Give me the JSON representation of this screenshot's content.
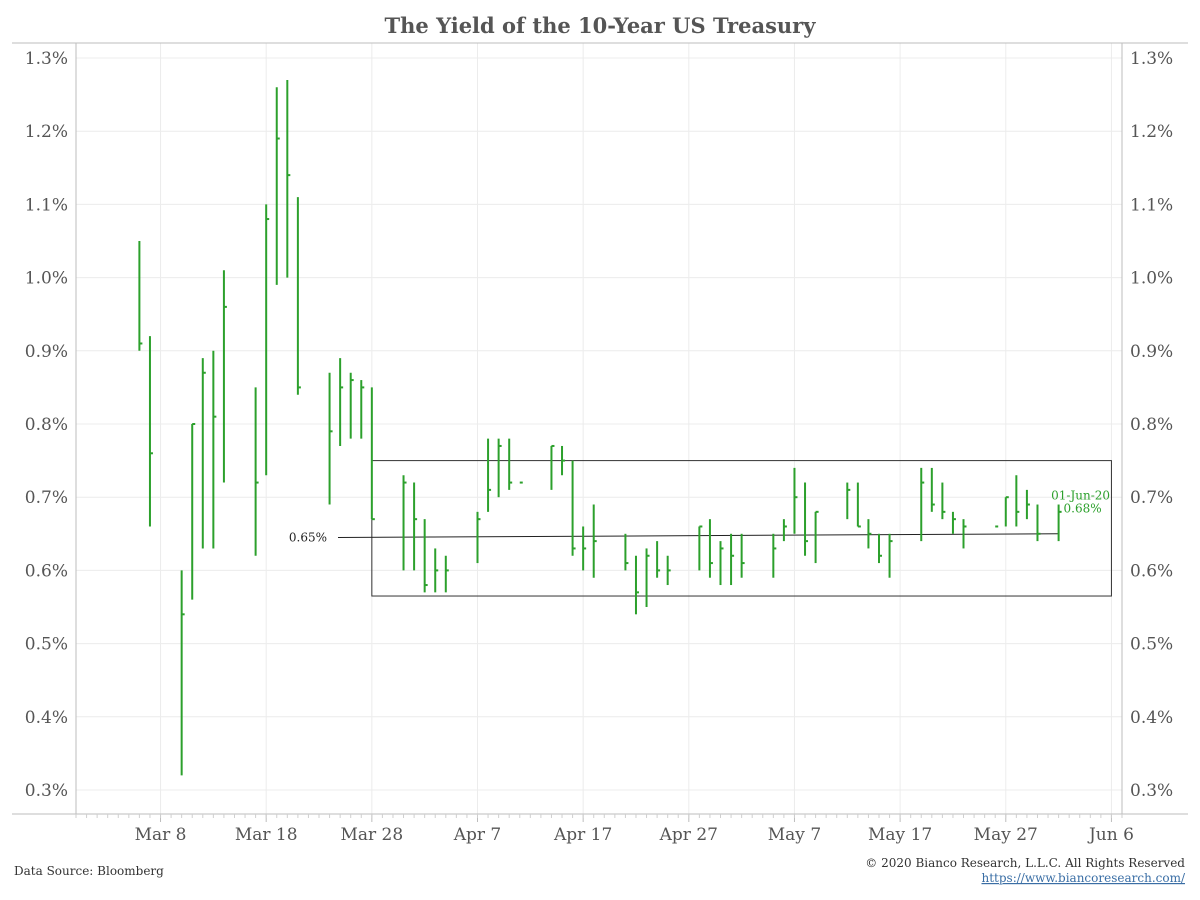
{
  "chart_data": {
    "type": "ohlc",
    "title": "The Yield of the 10-Year US Treasury",
    "ylim": [
      0.3,
      1.3
    ],
    "y_ticks": [
      {
        "value": 1.3,
        "label": "1.3%"
      },
      {
        "value": 1.2,
        "label": "1.2%"
      },
      {
        "value": 1.1,
        "label": "1.1%"
      },
      {
        "value": 1.0,
        "label": "1.0%"
      },
      {
        "value": 0.9,
        "label": "0.9%"
      },
      {
        "value": 0.8,
        "label": "0.8%"
      },
      {
        "value": 0.7,
        "label": "0.7%"
      },
      {
        "value": 0.6,
        "label": "0.6%"
      },
      {
        "value": 0.5,
        "label": "0.5%"
      },
      {
        "value": 0.4,
        "label": "0.4%"
      },
      {
        "value": 0.3,
        "label": "0.3%"
      }
    ],
    "x_range": [
      "2020-02-29",
      "2020-06-07"
    ],
    "x_ticks": [
      {
        "date": "2020-03-08",
        "label": "Mar 8"
      },
      {
        "date": "2020-03-18",
        "label": "Mar 18"
      },
      {
        "date": "2020-03-28",
        "label": "Mar 28"
      },
      {
        "date": "2020-04-07",
        "label": "Apr 7"
      },
      {
        "date": "2020-04-17",
        "label": "Apr 17"
      },
      {
        "date": "2020-04-27",
        "label": "Apr 27"
      },
      {
        "date": "2020-05-07",
        "label": "May 7"
      },
      {
        "date": "2020-05-17",
        "label": "May 17"
      },
      {
        "date": "2020-05-27",
        "label": "May 27"
      },
      {
        "date": "2020-06-06",
        "label": "Jun 6"
      }
    ],
    "grid": true,
    "bar_color": "#2ca02c",
    "series": [
      {
        "date": "2020-03-06",
        "high": 1.05,
        "low": 0.9,
        "close": 0.91
      },
      {
        "date": "2020-03-07",
        "high": 0.92,
        "low": 0.66,
        "close": 0.76
      },
      {
        "date": "2020-03-10",
        "high": 0.6,
        "low": 0.32,
        "close": 0.54
      },
      {
        "date": "2020-03-11",
        "high": 0.8,
        "low": 0.56,
        "close": 0.8
      },
      {
        "date": "2020-03-12",
        "high": 0.89,
        "low": 0.63,
        "close": 0.87
      },
      {
        "date": "2020-03-13",
        "high": 0.9,
        "low": 0.63,
        "close": 0.81
      },
      {
        "date": "2020-03-14",
        "high": 1.01,
        "low": 0.72,
        "close": 0.96
      },
      {
        "date": "2020-03-17",
        "high": 0.85,
        "low": 0.62,
        "close": 0.72
      },
      {
        "date": "2020-03-18",
        "high": 1.1,
        "low": 0.73,
        "close": 1.08
      },
      {
        "date": "2020-03-19",
        "high": 1.26,
        "low": 0.99,
        "close": 1.19
      },
      {
        "date": "2020-03-20",
        "high": 1.27,
        "low": 1.0,
        "close": 1.14
      },
      {
        "date": "2020-03-21",
        "high": 1.11,
        "low": 0.84,
        "close": 0.85
      },
      {
        "date": "2020-03-24",
        "high": 0.87,
        "low": 0.69,
        "close": 0.79
      },
      {
        "date": "2020-03-25",
        "high": 0.89,
        "low": 0.77,
        "close": 0.85
      },
      {
        "date": "2020-03-26",
        "high": 0.87,
        "low": 0.78,
        "close": 0.86
      },
      {
        "date": "2020-03-27",
        "high": 0.86,
        "low": 0.78,
        "close": 0.85
      },
      {
        "date": "2020-03-28",
        "high": 0.85,
        "low": 0.67,
        "close": 0.67
      },
      {
        "date": "2020-03-31",
        "high": 0.73,
        "low": 0.6,
        "close": 0.72
      },
      {
        "date": "2020-04-01",
        "high": 0.72,
        "low": 0.6,
        "close": 0.67
      },
      {
        "date": "2020-04-02",
        "high": 0.67,
        "low": 0.57,
        "close": 0.58
      },
      {
        "date": "2020-04-03",
        "high": 0.63,
        "low": 0.57,
        "close": 0.6
      },
      {
        "date": "2020-04-04",
        "high": 0.62,
        "low": 0.57,
        "close": 0.6
      },
      {
        "date": "2020-04-07",
        "high": 0.68,
        "low": 0.61,
        "close": 0.67
      },
      {
        "date": "2020-04-08",
        "high": 0.78,
        "low": 0.68,
        "close": 0.71
      },
      {
        "date": "2020-04-09",
        "high": 0.78,
        "low": 0.7,
        "close": 0.77
      },
      {
        "date": "2020-04-10",
        "high": 0.78,
        "low": 0.71,
        "close": 0.72
      },
      {
        "date": "2020-04-11",
        "high": 0.72,
        "low": 0.72,
        "close": 0.72
      },
      {
        "date": "2020-04-14",
        "high": 0.77,
        "low": 0.71,
        "close": 0.77
      },
      {
        "date": "2020-04-15",
        "high": 0.77,
        "low": 0.73,
        "close": 0.75
      },
      {
        "date": "2020-04-16",
        "high": 0.75,
        "low": 0.62,
        "close": 0.63
      },
      {
        "date": "2020-04-17",
        "high": 0.66,
        "low": 0.6,
        "close": 0.63
      },
      {
        "date": "2020-04-18",
        "high": 0.69,
        "low": 0.59,
        "close": 0.64
      },
      {
        "date": "2020-04-21",
        "high": 0.65,
        "low": 0.6,
        "close": 0.61
      },
      {
        "date": "2020-04-22",
        "high": 0.62,
        "low": 0.54,
        "close": 0.57
      },
      {
        "date": "2020-04-23",
        "high": 0.63,
        "low": 0.55,
        "close": 0.62
      },
      {
        "date": "2020-04-24",
        "high": 0.64,
        "low": 0.59,
        "close": 0.6
      },
      {
        "date": "2020-04-25",
        "high": 0.62,
        "low": 0.58,
        "close": 0.6
      },
      {
        "date": "2020-04-28",
        "high": 0.66,
        "low": 0.6,
        "close": 0.66
      },
      {
        "date": "2020-04-29",
        "high": 0.67,
        "low": 0.59,
        "close": 0.61
      },
      {
        "date": "2020-04-30",
        "high": 0.64,
        "low": 0.58,
        "close": 0.63
      },
      {
        "date": "2020-05-01",
        "high": 0.65,
        "low": 0.58,
        "close": 0.62
      },
      {
        "date": "2020-05-02",
        "high": 0.65,
        "low": 0.59,
        "close": 0.61
      },
      {
        "date": "2020-05-05",
        "high": 0.65,
        "low": 0.59,
        "close": 0.63
      },
      {
        "date": "2020-05-06",
        "high": 0.67,
        "low": 0.64,
        "close": 0.66
      },
      {
        "date": "2020-05-07",
        "high": 0.74,
        "low": 0.65,
        "close": 0.7
      },
      {
        "date": "2020-05-08",
        "high": 0.72,
        "low": 0.62,
        "close": 0.64
      },
      {
        "date": "2020-05-09",
        "high": 0.68,
        "low": 0.61,
        "close": 0.68
      },
      {
        "date": "2020-05-12",
        "high": 0.72,
        "low": 0.67,
        "close": 0.71
      },
      {
        "date": "2020-05-13",
        "high": 0.72,
        "low": 0.66,
        "close": 0.66
      },
      {
        "date": "2020-05-14",
        "high": 0.67,
        "low": 0.63,
        "close": 0.65
      },
      {
        "date": "2020-05-15",
        "high": 0.65,
        "low": 0.61,
        "close": 0.62
      },
      {
        "date": "2020-05-16",
        "high": 0.65,
        "low": 0.59,
        "close": 0.64
      },
      {
        "date": "2020-05-19",
        "high": 0.74,
        "low": 0.64,
        "close": 0.72
      },
      {
        "date": "2020-05-20",
        "high": 0.74,
        "low": 0.68,
        "close": 0.69
      },
      {
        "date": "2020-05-21",
        "high": 0.72,
        "low": 0.67,
        "close": 0.68
      },
      {
        "date": "2020-05-22",
        "high": 0.68,
        "low": 0.65,
        "close": 0.67
      },
      {
        "date": "2020-05-23",
        "high": 0.67,
        "low": 0.63,
        "close": 0.66
      },
      {
        "date": "2020-05-26",
        "high": 0.66,
        "low": 0.66,
        "close": 0.66
      },
      {
        "date": "2020-05-27",
        "high": 0.7,
        "low": 0.66,
        "close": 0.7
      },
      {
        "date": "2020-05-28",
        "high": 0.73,
        "low": 0.66,
        "close": 0.68
      },
      {
        "date": "2020-05-29",
        "high": 0.71,
        "low": 0.67,
        "close": 0.69
      },
      {
        "date": "2020-05-30",
        "high": 0.69,
        "low": 0.64,
        "close": 0.65
      },
      {
        "date": "2020-06-01",
        "high": 0.69,
        "low": 0.64,
        "close": 0.68
      }
    ],
    "reference_line": {
      "label": "0.65%",
      "start": {
        "date": "2020-03-28",
        "value": 0.645
      },
      "end": {
        "date": "2020-06-01",
        "value": 0.65
      }
    },
    "range_box": {
      "x_start": "2020-03-28",
      "x_end": "2020-06-06",
      "y_low": 0.565,
      "y_high": 0.75
    },
    "last_point_label": {
      "date": "01-Jun-20",
      "value": "0.68%"
    }
  },
  "footer": {
    "source": "Data Source: Bloomberg",
    "copyright": "© 2020 Bianco Research, L.L.C. All Rights Reserved",
    "url": "https://www.biancoresearch.com/"
  }
}
